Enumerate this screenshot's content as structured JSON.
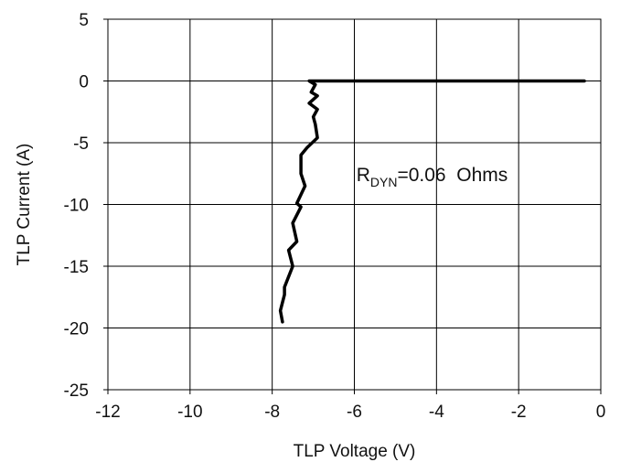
{
  "chart_data": {
    "type": "line",
    "title": "",
    "xlabel": "TLP Voltage (V)",
    "ylabel": "TLP Current (A)",
    "xlim": [
      -12,
      0
    ],
    "ylim": [
      -25,
      5
    ],
    "xticks": [
      -12,
      -10,
      -8,
      -6,
      -4,
      -2,
      0
    ],
    "yticks": [
      5,
      0,
      -5,
      -10,
      -15,
      -20,
      -25
    ],
    "grid": true,
    "series": [
      {
        "color": "#000000",
        "x": [
          -0.4,
          -7.1,
          -6.95,
          -7.05,
          -6.9,
          -7.1,
          -6.9,
          -7.0,
          -6.95,
          -6.9,
          -7.15,
          -7.3,
          -7.3,
          -7.2,
          -7.4,
          -7.3,
          -7.5,
          -7.4,
          -7.6,
          -7.5,
          -7.7,
          -7.7,
          -7.8,
          -7.75
        ],
        "y": [
          0,
          0,
          -0.3,
          -0.9,
          -1.2,
          -1.8,
          -2.3,
          -2.9,
          -3.5,
          -4.6,
          -5.4,
          -6.0,
          -7.5,
          -8.5,
          -9.9,
          -10.2,
          -11.5,
          -13.0,
          -13.7,
          -15.0,
          -16.7,
          -17.3,
          -18.6,
          -19.5
        ]
      }
    ],
    "annotation": {
      "main": "R",
      "sub": "DYN",
      "rest": "=0.06  Ohms",
      "x": -5.95,
      "y": -8.1
    }
  }
}
